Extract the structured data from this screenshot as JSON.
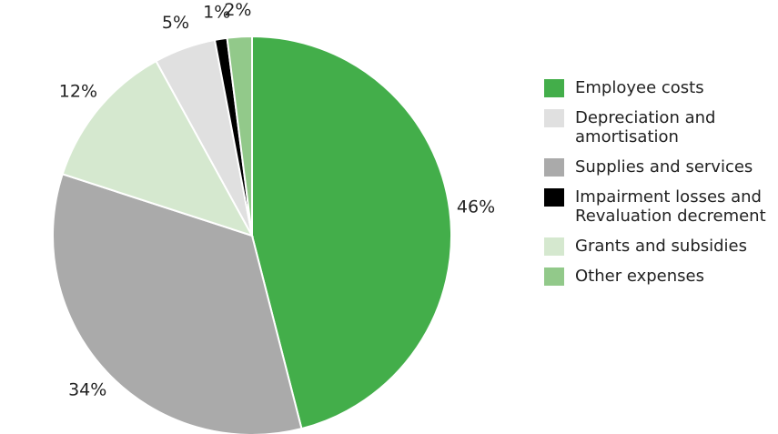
{
  "chart_data": {
    "type": "pie",
    "categories": [
      "Employee costs",
      "Supplies and services",
      "Grants and subsidies",
      "Depreciation and amortisation",
      "Impairment losses and Revaluation decrement",
      "Other expenses"
    ],
    "values": [
      46,
      34,
      12,
      5,
      1,
      2
    ],
    "value_labels": [
      "46%",
      "34%",
      "12%",
      "5%",
      "1%",
      "2%"
    ],
    "colors": [
      "#43ae4a",
      "#aaaaaa",
      "#d5e8cf",
      "#e0e0e0",
      "#000000",
      "#92c98a"
    ]
  }
}
